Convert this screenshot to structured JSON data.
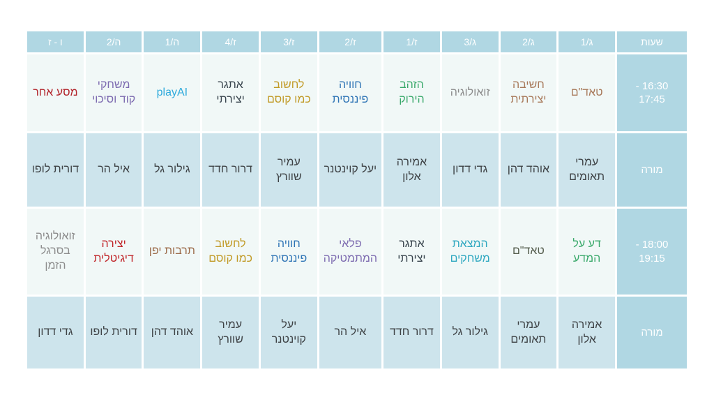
{
  "colors": {
    "page_bg": "#ffffff",
    "header_bg": "#b0d7e3",
    "teacher_row_bg": "#cde4ec",
    "class_row_bg": "#f1f8f7",
    "header_text": "#ffffff",
    "teacher_text": "#3e4245"
  },
  "timetable": {
    "hours_header": "שעות",
    "teacher_label": "מורה",
    "columns": [
      "ג/1",
      "ג/2",
      "ג/3",
      "ז/1",
      "ז/2",
      "ז/3",
      "ז/4",
      "ה/1",
      "ה/2",
      "ו - ז"
    ],
    "slots": [
      {
        "time": "16:30 - 17:45",
        "classes": [
          {
            "name": "טאד\"ם",
            "color": "#a8795a"
          },
          {
            "name": "חשיבה יצירתית",
            "color": "#a8795a"
          },
          {
            "name": "זואולוגיה",
            "color": "#8c8c8c"
          },
          {
            "name": "הזהב הירוק",
            "color": "#3aa96b"
          },
          {
            "name": "חוויה פיננסית",
            "color": "#2e74b5"
          },
          {
            "name": "לחשוב כמו קוסם",
            "color": "#c19a26"
          },
          {
            "name": "אתגר יצירתי",
            "color": "#39454e"
          },
          {
            "name": "playAI",
            "color": "#2eaadc"
          },
          {
            "name": "משחקי קוד וסיכוי",
            "color": "#7d6bb0"
          },
          {
            "name": "מסע אחר",
            "color": "#b2232a"
          }
        ],
        "teachers": [
          "עמרי תאומים",
          "אוהד דהן",
          "גדי דדון",
          "אמירה אלון",
          "יעל קוינטנר",
          "עמיר שוורץ",
          "דרור חדד",
          "גילור גל",
          "איל הר",
          "דורית לופו"
        ]
      },
      {
        "time": "18:00 - 19:15",
        "classes": [
          {
            "name": "דע על המדע",
            "color": "#3aa96b"
          },
          {
            "name": "טאד\"ם",
            "color": "#545c4c"
          },
          {
            "name": "המצאת משחקים",
            "color": "#2fa8c0"
          },
          {
            "name": "אתגר יצירתי",
            "color": "#39454e"
          },
          {
            "name": "פלאי המתמטיקה",
            "color": "#7d6bb0"
          },
          {
            "name": "חוויה פיננסית",
            "color": "#2e74b5"
          },
          {
            "name": "לחשוב כמו קוסם",
            "color": "#c19a26"
          },
          {
            "name": "תרבות יפן",
            "color": "#9c6b4a"
          },
          {
            "name": "יצירה דיגיטלית",
            "color": "#c02428"
          },
          {
            "name": "זואולוגיה בסרגל הזמן",
            "color": "#8c8c8c"
          }
        ],
        "teachers": [
          "אמירה אלון",
          "עמרי תאומים",
          "גילור גל",
          "דרור חדד",
          "איל הר",
          "יעל קוינטנר",
          "עמיר שוורץ",
          "אוהד דהן",
          "דורית לופו",
          "גדי דדון"
        ]
      }
    ]
  }
}
